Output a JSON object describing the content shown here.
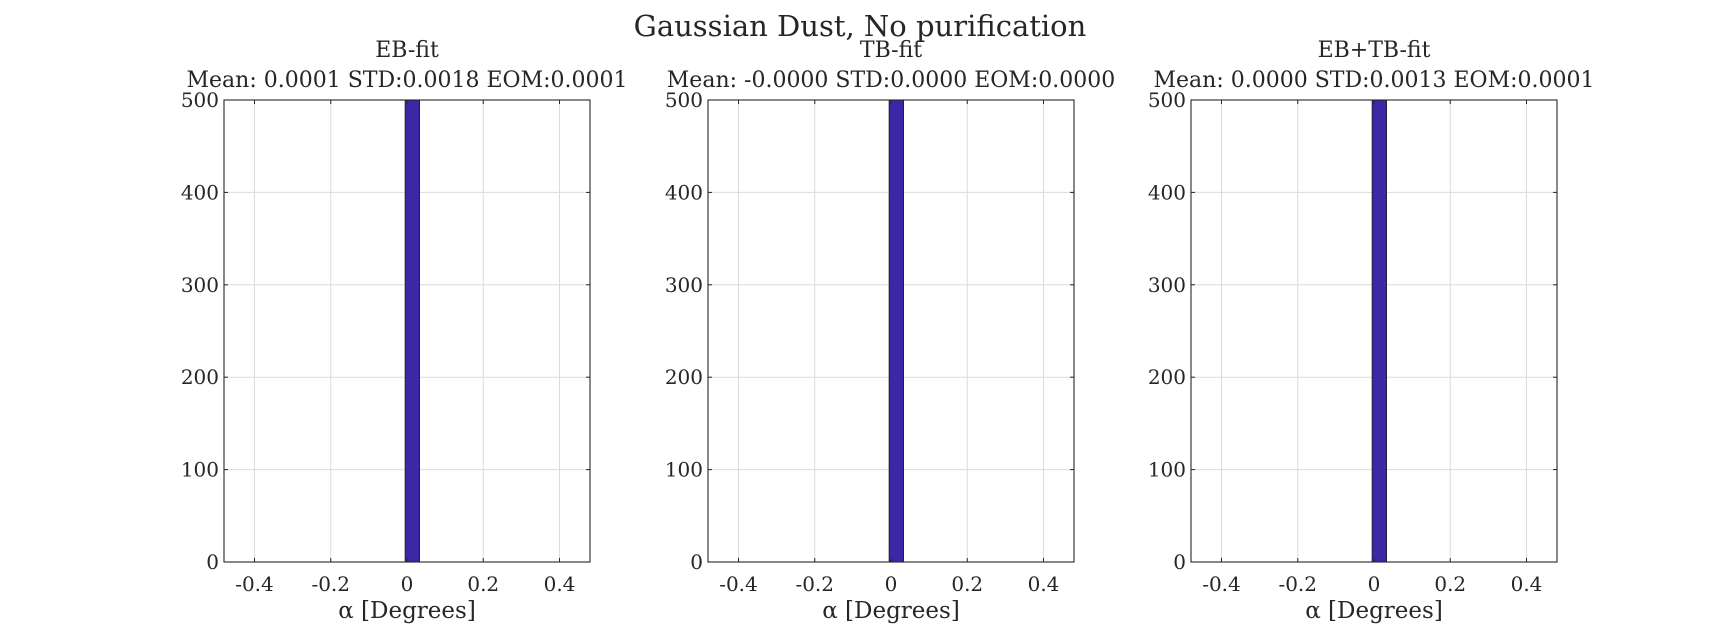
{
  "figure": {
    "suptitle": "Gaussian Dust, No purification"
  },
  "chart_data": [
    {
      "type": "bar",
      "title": "EB-fit",
      "subtitle": "Mean: 0.0001 STD:0.0018 EOM:0.0001",
      "xlabel": "α [Degrees]",
      "ylabel": "",
      "xlim": [
        -0.48,
        0.48
      ],
      "ylim": [
        0,
        500
      ],
      "xticks": [
        -0.4,
        -0.2,
        0,
        0.2,
        0.4
      ],
      "xtick_labels": [
        "-0.4",
        "-0.2",
        "0",
        "0.2",
        "0.4"
      ],
      "yticks": [
        0,
        100,
        200,
        300,
        400,
        500
      ],
      "ytick_labels": [
        "0",
        "100",
        "200",
        "300",
        "400",
        "500"
      ],
      "grid": true,
      "bins": [
        {
          "x0": -0.005,
          "x1": 0.033,
          "count": 500
        }
      ],
      "bar_color": "#3a28a6"
    },
    {
      "type": "bar",
      "title": "TB-fit",
      "subtitle": "Mean: -0.0000 STD:0.0000 EOM:0.0000",
      "xlabel": "α [Degrees]",
      "ylabel": "",
      "xlim": [
        -0.48,
        0.48
      ],
      "ylim": [
        0,
        500
      ],
      "xticks": [
        -0.4,
        -0.2,
        0,
        0.2,
        0.4
      ],
      "xtick_labels": [
        "-0.4",
        "-0.2",
        "0",
        "0.2",
        "0.4"
      ],
      "yticks": [
        0,
        100,
        200,
        300,
        400,
        500
      ],
      "ytick_labels": [
        "0",
        "100",
        "200",
        "300",
        "400",
        "500"
      ],
      "grid": true,
      "bins": [
        {
          "x0": -0.005,
          "x1": 0.033,
          "count": 500
        }
      ],
      "bar_color": "#3a28a6"
    },
    {
      "type": "bar",
      "title": "EB+TB-fit",
      "subtitle": "Mean: 0.0000 STD:0.0013 EOM:0.0001",
      "xlabel": "α [Degrees]",
      "ylabel": "",
      "xlim": [
        -0.48,
        0.48
      ],
      "ylim": [
        0,
        500
      ],
      "xticks": [
        -0.4,
        -0.2,
        0,
        0.2,
        0.4
      ],
      "xtick_labels": [
        "-0.4",
        "-0.2",
        "0",
        "0.2",
        "0.4"
      ],
      "yticks": [
        0,
        100,
        200,
        300,
        400,
        500
      ],
      "ytick_labels": [
        "0",
        "100",
        "200",
        "300",
        "400",
        "500"
      ],
      "grid": true,
      "bins": [
        {
          "x0": -0.005,
          "x1": 0.033,
          "count": 500
        }
      ],
      "bar_color": "#3a28a6"
    }
  ]
}
